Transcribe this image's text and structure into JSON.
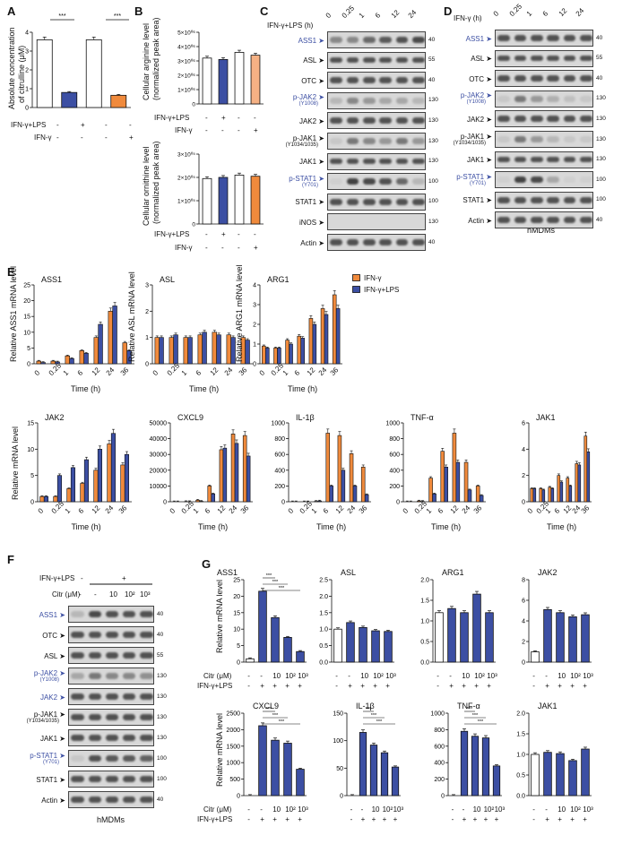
{
  "panels": {
    "A": {
      "label": "A",
      "ylabel_line1": "Absolute concentration",
      "ylabel_line2": "of citrulline (μM)",
      "row1_label": "IFN-γ+LPS",
      "row2_label": "IFN-γ",
      "row1_signs": [
        "-",
        "+",
        "-",
        "-"
      ],
      "row2_signs": [
        "-",
        "-",
        "-",
        "+"
      ],
      "sig": [
        "***",
        "***"
      ]
    },
    "B": {
      "label": "B",
      "top_ylabel_line1": "Cellular arginine level",
      "top_ylabel_line2": "(normalized peak area)",
      "bottom_ylabel_line1": "Cellular ornithine level",
      "bottom_ylabel_line2": "(normalized peak area)",
      "row1_label": "IFN-γ+LPS",
      "row2_label": "IFN-γ",
      "row1_signs": [
        "-",
        "+",
        "-",
        "-"
      ],
      "row2_signs": [
        "-",
        "-",
        "-",
        "+"
      ]
    },
    "C": {
      "label": "C",
      "treatment_label": "IFN-γ+LPS (h)",
      "timepoints": [
        "0",
        "0.25",
        "1",
        "6",
        "12",
        "24"
      ],
      "rows": [
        {
          "name": "ASS1",
          "sub": "",
          "blue": true,
          "mw": "40"
        },
        {
          "name": "ASL",
          "sub": "",
          "blue": false,
          "mw": "55"
        },
        {
          "name": "OTC",
          "sub": "",
          "blue": false,
          "mw": "40"
        },
        {
          "name": "p-JAK2",
          "sub": "(Y1008)",
          "blue": true,
          "mw": "130"
        },
        {
          "name": "JAK2",
          "sub": "",
          "blue": false,
          "mw": "130"
        },
        {
          "name": "p-JAK1",
          "sub": "(Y1034/1035)",
          "blue": false,
          "mw": "130"
        },
        {
          "name": "JAK1",
          "sub": "",
          "blue": false,
          "mw": "130"
        },
        {
          "name": "p-STAT1",
          "sub": "(Y701)",
          "blue": true,
          "mw": "100"
        },
        {
          "name": "STAT1",
          "sub": "",
          "blue": false,
          "mw": "100"
        },
        {
          "name": "iNOS",
          "sub": "",
          "blue": false,
          "mw": "130"
        },
        {
          "name": "Actin",
          "sub": "",
          "blue": false,
          "mw": "40"
        }
      ],
      "caption": "hMDMs"
    },
    "D": {
      "label": "D",
      "treatment_label": "IFN-γ (h)",
      "timepoints": [
        "0",
        "0.25",
        "1",
        "6",
        "12",
        "24"
      ],
      "rows": [
        {
          "name": "ASS1",
          "sub": "",
          "blue": true,
          "mw": "40"
        },
        {
          "name": "ASL",
          "sub": "",
          "blue": false,
          "mw": "55"
        },
        {
          "name": "OTC",
          "sub": "",
          "blue": false,
          "mw": "40"
        },
        {
          "name": "p-JAK2",
          "sub": "(Y1008)",
          "blue": true,
          "mw": "130"
        },
        {
          "name": "JAK2",
          "sub": "",
          "blue": false,
          "mw": "130"
        },
        {
          "name": "p-JAK1",
          "sub": "(Y1034/1035)",
          "blue": false,
          "mw": "130"
        },
        {
          "name": "JAK1",
          "sub": "",
          "blue": false,
          "mw": "130"
        },
        {
          "name": "p-STAT1",
          "sub": "(Y701)",
          "blue": true,
          "mw": "100"
        },
        {
          "name": "STAT1",
          "sub": "",
          "blue": false,
          "mw": "100"
        },
        {
          "name": "Actin",
          "sub": "",
          "blue": false,
          "mw": "40"
        }
      ],
      "caption": "hMDMs"
    },
    "E": {
      "label": "E",
      "legend": [
        "IFN-γ",
        "IFN-γ+LPS"
      ],
      "xlabel": "Time (h)",
      "xticks": [
        "0",
        "0.25",
        "1",
        "6",
        "12",
        "24",
        "36"
      ]
    },
    "F": {
      "label": "F",
      "row1_label": "IFN-γ+LPS",
      "row1_signs": [
        "-",
        "+"
      ],
      "row2_label": "Citr (μM)",
      "row2_values": [
        "-",
        "-",
        "10",
        "10²",
        "10³"
      ],
      "rows": [
        {
          "name": "ASS1",
          "sub": "",
          "blue": true,
          "mw": "40"
        },
        {
          "name": "OTC",
          "sub": "",
          "blue": false,
          "mw": "40"
        },
        {
          "name": "ASL",
          "sub": "",
          "blue": false,
          "mw": "55"
        },
        {
          "name": "p-JAK2",
          "sub": "(Y1008)",
          "blue": true,
          "mw": "130"
        },
        {
          "name": "JAK2",
          "sub": "",
          "blue": true,
          "mw": "130"
        },
        {
          "name": "p-JAK1",
          "sub": "(Y1034/1035)",
          "blue": false,
          "mw": "130"
        },
        {
          "name": "JAK1",
          "sub": "",
          "blue": false,
          "mw": "130"
        },
        {
          "name": "p-STAT1",
          "sub": "(Y701)",
          "blue": true,
          "mw": "100"
        },
        {
          "name": "STAT1",
          "sub": "",
          "blue": false,
          "mw": "100"
        },
        {
          "name": "Actin",
          "sub": "",
          "blue": false,
          "mw": "40"
        }
      ],
      "caption": "hMDMs"
    },
    "G": {
      "label": "G",
      "ylabel": "Relative mRNA level",
      "row1_label": "Citr (μM)",
      "row2_label": "IFN-γ+LPS",
      "citr_values": [
        "-",
        "-",
        "10",
        "10²",
        "10³"
      ],
      "lps_values": [
        "-",
        "+",
        "+",
        "+",
        "+"
      ],
      "sig": [
        "***",
        "***",
        "***"
      ]
    }
  },
  "colors": {
    "blue": "#3c4fa3",
    "orange": "#f08a3c",
    "white": "#ffffff",
    "peach": "#f5b184"
  },
  "chart_data": [
    {
      "panel": "A",
      "type": "bar",
      "categories": [
        "ctrl",
        "IFN-γ+LPS",
        "ctrl",
        "IFN-γ"
      ],
      "values": [
        3.6,
        0.8,
        3.6,
        0.65
      ],
      "colors": [
        "#ffffff",
        "#3c4fa3",
        "#ffffff",
        "#f08a3c"
      ],
      "yticks": [
        "0",
        "1",
        "2",
        "3",
        "4"
      ],
      "ylim": [
        0,
        4
      ]
    },
    {
      "panel": "B-arginine",
      "type": "bar",
      "categories": [
        "ctrl",
        "IFN-γ+LPS",
        "ctrl",
        "IFN-γ"
      ],
      "values": [
        3.2,
        3.1,
        3.6,
        3.4
      ],
      "colors": [
        "#ffffff",
        "#3c4fa3",
        "#ffffff",
        "#f5b184"
      ],
      "yticks": [
        "0",
        "1×10⁰⁶",
        "2×10⁰⁶",
        "3×10⁰⁶",
        "4×10⁰⁶",
        "5×10⁰⁶"
      ],
      "ylim": [
        0,
        5
      ]
    },
    {
      "panel": "B-ornithine",
      "type": "bar",
      "categories": [
        "ctrl",
        "IFN-γ+LPS",
        "ctrl",
        "IFN-γ"
      ],
      "values": [
        1.95,
        2.0,
        2.1,
        2.05
      ],
      "colors": [
        "#ffffff",
        "#3c4fa3",
        "#ffffff",
        "#f08a3c"
      ],
      "yticks": [
        "0",
        "1×10⁰⁵",
        "2×10⁰⁵",
        "3×10⁰⁵"
      ],
      "ylim": [
        0,
        3
      ]
    },
    {
      "panel": "E",
      "title": "ASS1",
      "type": "bar",
      "ylabel": "Relative ASS1 mRNA level",
      "yticks": [
        "0",
        "5",
        "10",
        "15",
        "20",
        "25"
      ],
      "ylim": [
        0,
        30
      ],
      "series": [
        {
          "name": "IFN-γ",
          "values": [
            1,
            1,
            3,
            5,
            10,
            20,
            8
          ]
        },
        {
          "name": "IFN-γ+LPS",
          "values": [
            0.5,
            0.7,
            2,
            4,
            15,
            22,
            5
          ]
        }
      ]
    },
    {
      "panel": "E",
      "title": "ASL",
      "type": "bar",
      "ylabel": "Relative ASL mRNA level",
      "yticks": [
        "0",
        "1",
        "2",
        "3"
      ],
      "ylim": [
        0,
        3
      ],
      "series": [
        {
          "name": "IFN-γ",
          "values": [
            1,
            1,
            1,
            1.1,
            1.2,
            1.1,
            1
          ]
        },
        {
          "name": "IFN-γ+LPS",
          "values": [
            1,
            1.1,
            1,
            1.2,
            1.1,
            1,
            0.9
          ]
        }
      ]
    },
    {
      "panel": "E",
      "title": "ARG1",
      "type": "bar",
      "ylabel": "Relative ARG1 mRNA level",
      "yticks": [
        "0",
        "1",
        "2",
        "3",
        "4"
      ],
      "ylim": [
        0,
        4
      ],
      "series": [
        {
          "name": "IFN-γ",
          "values": [
            0.9,
            0.8,
            1.2,
            1.4,
            2.3,
            2.8,
            3.5
          ]
        },
        {
          "name": "IFN-γ+LPS",
          "values": [
            0.8,
            0.8,
            1,
            1.3,
            2,
            2.5,
            2.8
          ]
        }
      ]
    },
    {
      "panel": "E",
      "title": "JAK2",
      "type": "bar",
      "ylabel": "Relative mRNA level",
      "yticks": [
        "0",
        "5",
        "10",
        "15"
      ],
      "ylim": [
        0,
        15
      ],
      "series": [
        {
          "name": "IFN-γ",
          "values": [
            1,
            1,
            2.5,
            3.5,
            6,
            11,
            7
          ]
        },
        {
          "name": "IFN-γ+LPS",
          "values": [
            1,
            5,
            6.5,
            8,
            10,
            13,
            9
          ]
        }
      ]
    },
    {
      "panel": "E",
      "title": "CXCL9",
      "type": "bar",
      "yticks": [
        "0",
        "10000",
        "20000",
        "30000",
        "40000",
        "50000"
      ],
      "ylim": [
        0,
        50000
      ],
      "series": [
        {
          "name": "IFN-γ",
          "values": [
            0,
            100,
            1000,
            10000,
            33000,
            43000,
            42000
          ]
        },
        {
          "name": "IFN-γ+LPS",
          "values": [
            0,
            100,
            300,
            5000,
            34000,
            37000,
            29000
          ]
        }
      ]
    },
    {
      "panel": "E",
      "title": "IL-1β",
      "type": "bar",
      "yticks": [
        "0",
        "200",
        "400",
        "600",
        "800",
        "1000"
      ],
      "ylim": [
        0,
        1000
      ],
      "series": [
        {
          "name": "IFN-γ",
          "values": [
            0,
            0,
            5,
            870,
            840,
            610,
            440
          ]
        },
        {
          "name": "IFN-γ+LPS",
          "values": [
            0,
            0,
            10,
            200,
            400,
            200,
            90
          ]
        }
      ]
    },
    {
      "panel": "E",
      "title": "TNF-α",
      "type": "bar",
      "yticks": [
        "0",
        "200",
        "400",
        "600",
        "800",
        "1000"
      ],
      "ylim": [
        0,
        1000
      ],
      "series": [
        {
          "name": "IFN-γ",
          "values": [
            0,
            10,
            300,
            640,
            870,
            500,
            200
          ]
        },
        {
          "name": "IFN-γ+LPS",
          "values": [
            0,
            5,
            100,
            440,
            500,
            150,
            80
          ]
        }
      ]
    },
    {
      "panel": "E",
      "title": "JAK1",
      "type": "bar",
      "yticks": [
        "0",
        "2",
        "4",
        "6"
      ],
      "ylim": [
        0,
        6
      ],
      "series": [
        {
          "name": "IFN-γ",
          "values": [
            1,
            1,
            1.1,
            2,
            1.8,
            2.9,
            5
          ]
        },
        {
          "name": "IFN-γ+LPS",
          "values": [
            1,
            0.9,
            1,
            1.5,
            1.2,
            2.8,
            3.8
          ]
        }
      ]
    },
    {
      "panel": "G",
      "title": "ASS1",
      "type": "bar",
      "yticks": [
        "0",
        "5",
        "10",
        "15",
        "20",
        "25"
      ],
      "ylim": [
        0,
        25
      ],
      "values": [
        1,
        21.5,
        13.5,
        7.5,
        3.2
      ]
    },
    {
      "panel": "G",
      "title": "ASL",
      "type": "bar",
      "yticks": [
        "0.0",
        "0.5",
        "1.0",
        "1.5",
        "2.0",
        "2.5"
      ],
      "ylim": [
        0,
        2.5
      ],
      "values": [
        1,
        1.2,
        1.05,
        0.95,
        0.93
      ]
    },
    {
      "panel": "G",
      "title": "ARG1",
      "type": "bar",
      "yticks": [
        "0.0",
        "0.5",
        "1.0",
        "1.5",
        "2.0"
      ],
      "ylim": [
        0,
        2
      ],
      "values": [
        1.2,
        1.3,
        1.2,
        1.65,
        1.2
      ]
    },
    {
      "panel": "G",
      "title": "JAK2",
      "type": "bar",
      "yticks": [
        "0",
        "2",
        "4",
        "6",
        "8"
      ],
      "ylim": [
        0,
        8
      ],
      "values": [
        1,
        5.1,
        4.8,
        4.4,
        4.6
      ]
    },
    {
      "panel": "G",
      "title": "CXCL9",
      "type": "bar",
      "yticks": [
        "0",
        "500",
        "1000",
        "1500",
        "2000",
        "2500"
      ],
      "ylim": [
        0,
        2500
      ],
      "values": [
        0,
        2120,
        1680,
        1590,
        800
      ]
    },
    {
      "panel": "G",
      "title": "IL-1β",
      "type": "bar",
      "yticks": [
        "0",
        "50",
        "100",
        "150"
      ],
      "ylim": [
        0,
        150
      ],
      "values": [
        0,
        115,
        92,
        78,
        52
      ]
    },
    {
      "panel": "G",
      "title": "TNF-α",
      "type": "bar",
      "yticks": [
        "0",
        "200",
        "400",
        "600",
        "800",
        "1000"
      ],
      "ylim": [
        0,
        1000
      ],
      "values": [
        0,
        780,
        720,
        700,
        360
      ]
    },
    {
      "panel": "G",
      "title": "JAK1",
      "type": "bar",
      "yticks": [
        "0.0",
        "0.5",
        "1.0",
        "1.5",
        "2.0"
      ],
      "ylim": [
        0,
        2
      ],
      "values": [
        1,
        1.05,
        1.02,
        0.85,
        1.13
      ]
    }
  ]
}
